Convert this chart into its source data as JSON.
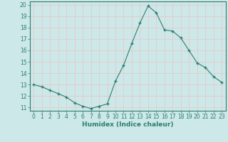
{
  "x": [
    0,
    1,
    2,
    3,
    4,
    5,
    6,
    7,
    8,
    9,
    10,
    11,
    12,
    13,
    14,
    15,
    16,
    17,
    18,
    19,
    20,
    21,
    22,
    23
  ],
  "y": [
    13.0,
    12.8,
    12.5,
    12.2,
    11.9,
    11.4,
    11.1,
    10.9,
    11.1,
    11.3,
    13.3,
    14.7,
    16.6,
    18.4,
    19.9,
    19.3,
    17.8,
    17.7,
    17.1,
    16.0,
    14.9,
    14.5,
    13.7,
    13.2
  ],
  "line_color": "#2e7d72",
  "marker": "+",
  "marker_size": 3.5,
  "bg_color": "#cce8e8",
  "grid_color": "#e8c8c8",
  "xlabel": "Humidex (Indice chaleur)",
  "xlim": [
    -0.5,
    23.5
  ],
  "ylim": [
    10.7,
    20.3
  ],
  "yticks": [
    11,
    12,
    13,
    14,
    15,
    16,
    17,
    18,
    19,
    20
  ],
  "xticks": [
    0,
    1,
    2,
    3,
    4,
    5,
    6,
    7,
    8,
    9,
    10,
    11,
    12,
    13,
    14,
    15,
    16,
    17,
    18,
    19,
    20,
    21,
    22,
    23
  ],
  "tick_fontsize": 5.5,
  "label_fontsize": 6.5,
  "tick_color": "#2e7d72",
  "label_color": "#2e7d72",
  "spine_color": "#2e7d72"
}
